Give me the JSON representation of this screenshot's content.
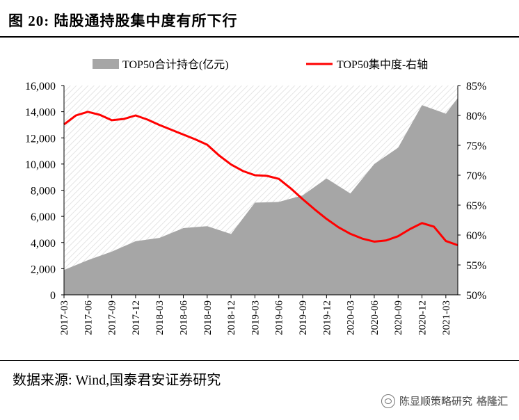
{
  "figure": {
    "title": "图 20:  陆股通持股集中度有所下行",
    "source": "数据来源:  Wind,国泰君安证券研究",
    "watermark_text": "陈显顺策略研究",
    "watermark_brand": "格隆汇"
  },
  "chart_data": {
    "type": "area+line",
    "categories": [
      "2017-03",
      "2017-06",
      "2017-09",
      "2017-12",
      "2018-03",
      "2018-06",
      "2018-09",
      "2018-12",
      "2019-03",
      "2019-06",
      "2019-09",
      "2019-12",
      "2020-03",
      "2020-06",
      "2020-09",
      "2020-12",
      "2021-03"
    ],
    "series": [
      {
        "name": "TOP50合计持仓(亿元)",
        "type": "area",
        "axis": "left",
        "color": "#a6a6a6",
        "points": [
          [
            0,
            1900
          ],
          [
            1,
            2650
          ],
          [
            2,
            3300
          ],
          [
            3,
            4100
          ],
          [
            4,
            4350
          ],
          [
            5,
            5100
          ],
          [
            6,
            5250
          ],
          [
            7,
            4650
          ],
          [
            8,
            7050
          ],
          [
            9,
            7100
          ],
          [
            10,
            7600
          ],
          [
            11,
            8900
          ],
          [
            12,
            7750
          ],
          [
            13,
            10000
          ],
          [
            14,
            11250
          ],
          [
            15,
            14500
          ],
          [
            16,
            13850
          ],
          [
            16.5,
            15050
          ]
        ]
      },
      {
        "name": "TOP50集中度-右轴",
        "type": "line",
        "axis": "right",
        "color": "#ff0000",
        "points": [
          [
            0,
            78.5
          ],
          [
            0.5,
            80
          ],
          [
            1,
            80.6
          ],
          [
            1.5,
            80.1
          ],
          [
            2,
            79.2
          ],
          [
            2.5,
            79.4
          ],
          [
            3,
            80
          ],
          [
            3.5,
            79.3
          ],
          [
            4,
            78.4
          ],
          [
            4.5,
            77.6
          ],
          [
            5,
            76.8
          ],
          [
            5.5,
            76.0
          ],
          [
            6,
            75.1
          ],
          [
            6.5,
            73.3
          ],
          [
            7,
            71.8
          ],
          [
            7.5,
            70.7
          ],
          [
            8,
            70.0
          ],
          [
            8.5,
            69.9
          ],
          [
            9,
            69.4
          ],
          [
            9.5,
            67.8
          ],
          [
            10,
            66.0
          ],
          [
            10.5,
            64.3
          ],
          [
            11,
            62.7
          ],
          [
            11.5,
            61.3
          ],
          [
            12,
            60.2
          ],
          [
            12.5,
            59.4
          ],
          [
            13,
            58.9
          ],
          [
            13.5,
            59.1
          ],
          [
            14,
            59.8
          ],
          [
            14.5,
            61.0
          ],
          [
            15,
            62.0
          ],
          [
            15.5,
            61.4
          ],
          [
            16,
            59.0
          ],
          [
            16.5,
            58.3
          ]
        ]
      }
    ],
    "y_left": {
      "min": 0,
      "max": 16000,
      "ticks": [
        "0",
        "2,000",
        "4,000",
        "6,000",
        "8,000",
        "10,000",
        "12,000",
        "14,000",
        "16,000"
      ]
    },
    "y_right": {
      "min": 50,
      "max": 85,
      "ticks": [
        "50%",
        "55%",
        "60%",
        "65%",
        "70%",
        "75%",
        "80%",
        "85%"
      ]
    },
    "legend_position": "top",
    "plot_background": "hatched"
  }
}
